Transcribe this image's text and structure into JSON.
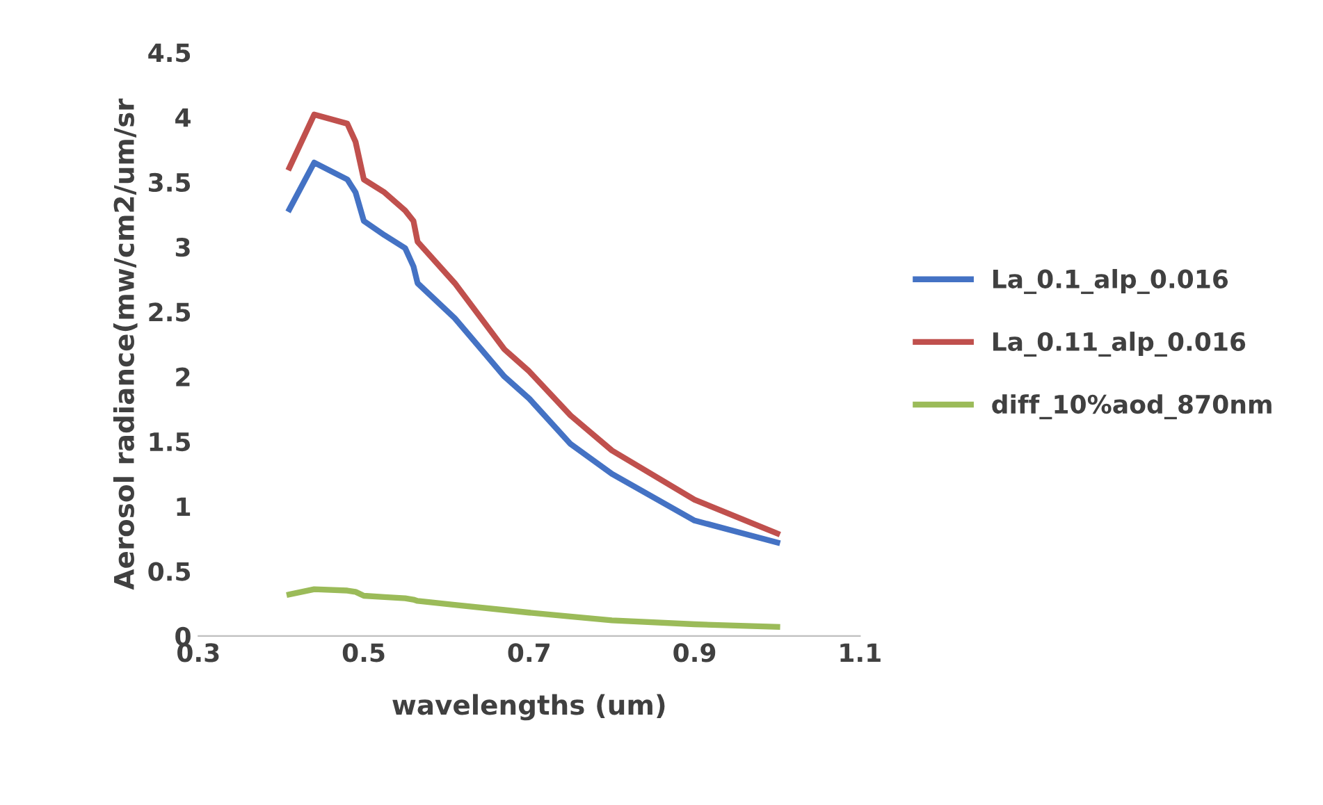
{
  "chart_data": {
    "type": "line",
    "xlabel": "wavelengths (um)",
    "ylabel": "Aerosol radiance(mw/cm2/um/sr",
    "xlim": [
      0.3,
      1.1
    ],
    "xticks": [
      0.3,
      0.5,
      0.7,
      0.9,
      1.1
    ],
    "ylim": [
      0,
      4.5
    ],
    "yticks": [
      0,
      0.5,
      1,
      1.5,
      2,
      2.5,
      3,
      3.5,
      4,
      4.5
    ],
    "grid": false,
    "legend": "right",
    "marker": "none",
    "line_style": "solid",
    "x": [
      0.41,
      0.44,
      0.48,
      0.49,
      0.5,
      0.525,
      0.55,
      0.56,
      0.565,
      0.61,
      0.67,
      0.7,
      0.75,
      0.8,
      0.9,
      1.0
    ],
    "series": [
      {
        "name": "La_0.1_alp_0.016",
        "color": "#4472c4",
        "values": [
          3.29,
          3.65,
          3.52,
          3.42,
          3.2,
          3.09,
          2.99,
          2.85,
          2.72,
          2.45,
          2.0,
          1.83,
          1.48,
          1.25,
          0.89,
          0.72
        ]
      },
      {
        "name": "La_0.11_alp_0.016",
        "color": "#c0504d",
        "values": [
          3.61,
          4.02,
          3.95,
          3.81,
          3.52,
          3.42,
          3.28,
          3.2,
          3.04,
          2.72,
          2.21,
          2.04,
          1.7,
          1.43,
          1.05,
          0.79
        ]
      },
      {
        "name": "diff_10%aod_870nm",
        "color": "#9bbb59",
        "values": [
          0.32,
          0.36,
          0.35,
          0.34,
          0.31,
          0.3,
          0.29,
          0.28,
          0.27,
          0.24,
          0.2,
          0.18,
          0.15,
          0.12,
          0.09,
          0.07
        ]
      }
    ]
  }
}
